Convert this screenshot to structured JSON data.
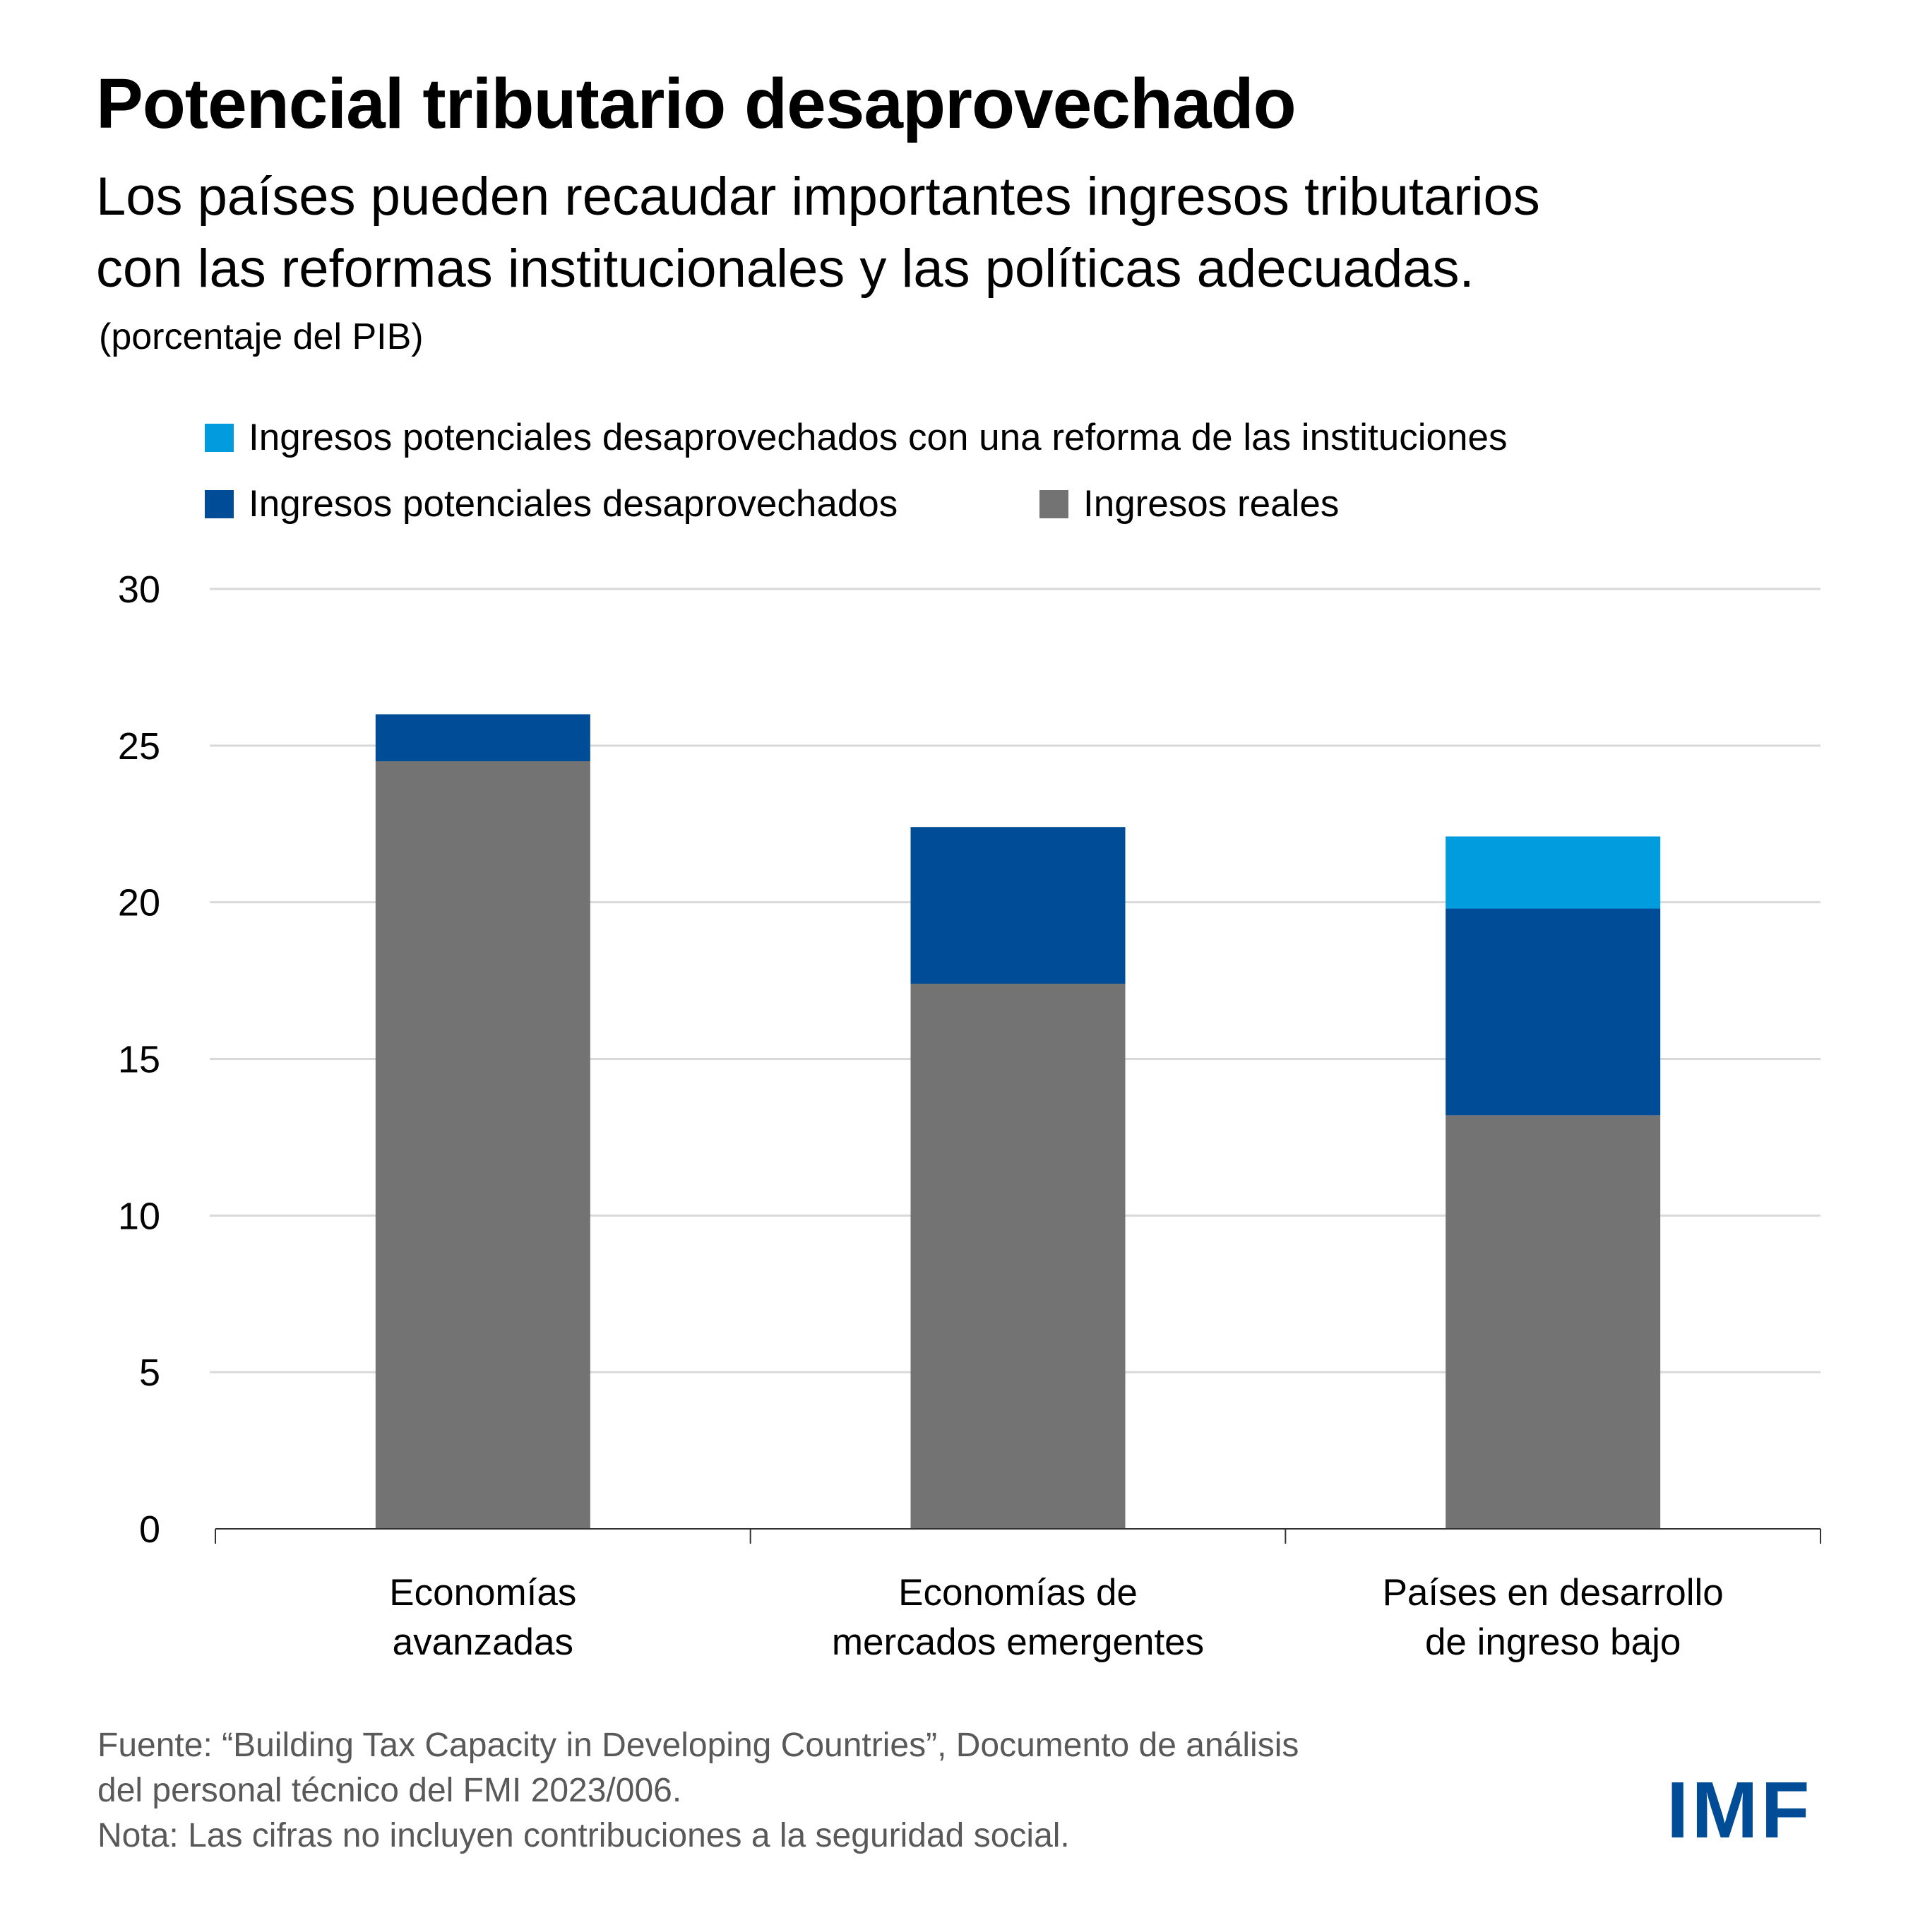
{
  "header": {
    "title": "Potencial tributario desaprovechado",
    "subtitle_lines": [
      "Los países pueden recaudar importantes ingresos tributarios",
      "con las reformas institucionales y las políticas adecuadas."
    ],
    "units": "(porcentaje del PIB)"
  },
  "legend": [
    {
      "label": "Ingresos potenciales desaprovechados con una reforma de las instituciones",
      "color": "#009CDE"
    },
    {
      "label": "Ingresos potenciales desaprovechados",
      "color": "#004C97"
    },
    {
      "label": "Ingresos reales",
      "color": "#727372"
    }
  ],
  "chart_data": {
    "type": "bar",
    "stacked": true,
    "title": "Potencial tributario desaprovechado",
    "xlabel": "",
    "ylabel": "(porcentaje del PIB)",
    "ylim": [
      0,
      30
    ],
    "yticks": [
      0,
      5,
      10,
      15,
      20,
      25,
      30
    ],
    "grid": true,
    "legend_position": "top-left",
    "categories": [
      [
        "Economías",
        "avanzadas"
      ],
      [
        "Economías de",
        "mercados emergentes"
      ],
      [
        "Países en desarrollo",
        "de ingreso bajo"
      ]
    ],
    "series": [
      {
        "name": "Ingresos reales",
        "color": "#727372",
        "values": [
          24.5,
          17.4,
          13.2
        ]
      },
      {
        "name": "Ingresos potenciales desaprovechados",
        "color": "#004C97",
        "values": [
          1.5,
          5.0,
          6.6
        ]
      },
      {
        "name": "Ingresos potenciales desaprovechados con una reforma de las instituciones",
        "color": "#009CDE",
        "values": [
          0,
          0,
          2.3
        ]
      }
    ],
    "totals": [
      26.0,
      22.4,
      22.1
    ]
  },
  "colors": {
    "gridline": "#D9D9D9",
    "axis": "#333333",
    "footer_text": "#595959",
    "brand": "#004C97"
  },
  "footer": {
    "source_line1": "Fuente: “Building Tax Capacity in Developing Countries”, Documento de análisis",
    "source_line2": "del personal técnico del FMI 2023/006.",
    "note": "Nota: Las cifras no incluyen contribuciones a la seguridad social."
  },
  "logo": {
    "text": "IMF"
  }
}
